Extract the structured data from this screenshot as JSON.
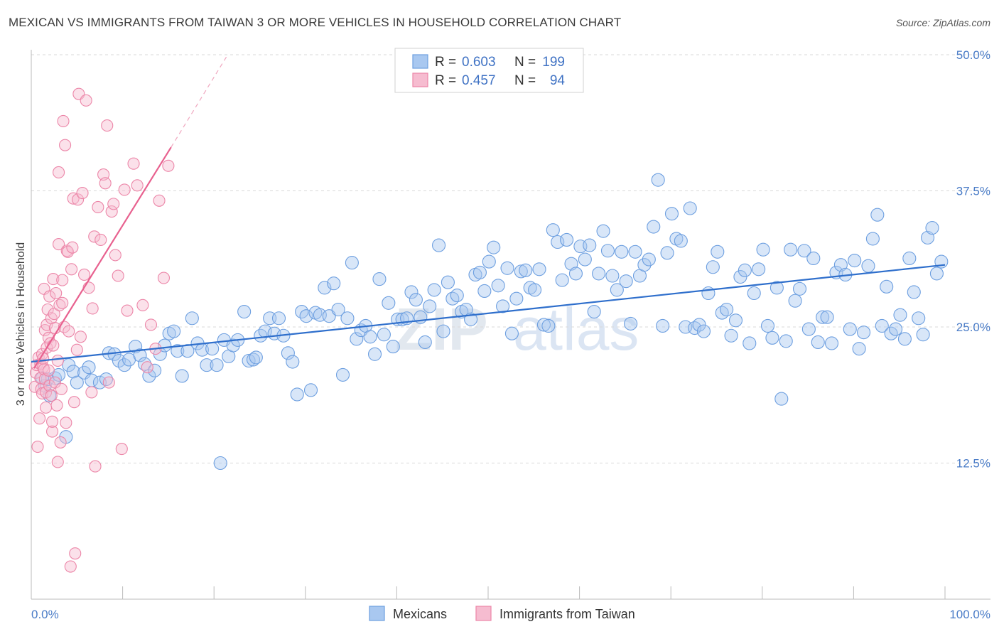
{
  "title": "MEXICAN VS IMMIGRANTS FROM TAIWAN 3 OR MORE VEHICLES IN HOUSEHOLD CORRELATION CHART",
  "source": "Source: ZipAtlas.com",
  "watermark": "ZIPatlas",
  "colors": {
    "mexicans_fill": "#a9c8f0",
    "mexicans_stroke": "#6d9fe0",
    "mexicans_line": "#2f6fcc",
    "taiwan_fill": "#f6bcd0",
    "taiwan_stroke": "#ec86a8",
    "taiwan_line": "#e8618f",
    "grid": "#d9d9d9",
    "tick_label": "#4a7cc7"
  },
  "legend": {
    "r_label": "R =",
    "n_label": "N =",
    "series": [
      {
        "r": "0.603",
        "n": "199"
      },
      {
        "r": "0.457",
        "n": "94"
      }
    ]
  },
  "chart_data": {
    "type": "scatter",
    "title": "MEXICAN VS IMMIGRANTS FROM TAIWAN 3 OR MORE VEHICLES IN HOUSEHOLD CORRELATION CHART",
    "xlabel": "",
    "ylabel": "3 or more Vehicles in Household",
    "xlim": [
      0,
      100
    ],
    "ylim": [
      0,
      52
    ],
    "x_tick_labels": [
      "0.0%",
      "100.0%"
    ],
    "y_ticks": [
      12.5,
      25.0,
      37.5,
      50.0
    ],
    "y_tick_labels": [
      "12.5%",
      "25.0%",
      "37.5%",
      "50.0%"
    ],
    "grid": true,
    "legend_position": "top-center",
    "series": [
      {
        "name": "Mexicans",
        "trend": {
          "x": [
            0,
            100
          ],
          "y": [
            21.8,
            30.7
          ]
        },
        "points": [
          [
            1.2,
            20.3
          ],
          [
            1.5,
            19.6
          ],
          [
            1.8,
            20.2
          ],
          [
            2.0,
            18.7
          ],
          [
            2.6,
            20.3
          ],
          [
            3.0,
            20.6
          ],
          [
            3.8,
            14.9
          ],
          [
            4.1,
            21.5
          ],
          [
            4.6,
            20.9
          ],
          [
            5.0,
            19.9
          ],
          [
            5.8,
            20.8
          ],
          [
            6.3,
            21.3
          ],
          [
            6.6,
            20.1
          ],
          [
            7.5,
            19.9
          ],
          [
            8.2,
            20.2
          ],
          [
            8.5,
            22.6
          ],
          [
            9.1,
            22.5
          ],
          [
            9.6,
            21.9
          ],
          [
            10.2,
            21.5
          ],
          [
            10.7,
            22.0
          ],
          [
            11.4,
            23.2
          ],
          [
            11.9,
            22.4
          ],
          [
            12.4,
            21.6
          ],
          [
            12.9,
            20.5
          ],
          [
            13.5,
            21.0
          ],
          [
            14.1,
            22.5
          ],
          [
            14.6,
            23.3
          ],
          [
            15.1,
            24.4
          ],
          [
            15.6,
            24.6
          ],
          [
            16.0,
            22.8
          ],
          [
            16.5,
            20.5
          ],
          [
            17.1,
            22.8
          ],
          [
            17.6,
            25.8
          ],
          [
            18.2,
            23.5
          ],
          [
            18.7,
            22.9
          ],
          [
            19.2,
            21.5
          ],
          [
            19.8,
            23.0
          ],
          [
            20.3,
            21.5
          ],
          [
            20.7,
            12.5
          ],
          [
            21.1,
            23.8
          ],
          [
            21.6,
            22.3
          ],
          [
            22.1,
            23.3
          ],
          [
            22.6,
            23.8
          ],
          [
            23.3,
            26.4
          ],
          [
            23.8,
            21.9
          ],
          [
            24.3,
            22.0
          ],
          [
            24.6,
            22.2
          ],
          [
            25.1,
            24.2
          ],
          [
            25.6,
            24.6
          ],
          [
            26.1,
            25.8
          ],
          [
            26.6,
            24.4
          ],
          [
            27.1,
            25.8
          ],
          [
            27.6,
            24.2
          ],
          [
            28.1,
            22.6
          ],
          [
            28.6,
            21.8
          ],
          [
            29.1,
            18.8
          ],
          [
            29.6,
            26.4
          ],
          [
            30.1,
            26.0
          ],
          [
            30.6,
            19.2
          ],
          [
            31.1,
            26.3
          ],
          [
            31.6,
            26.1
          ],
          [
            32.1,
            28.6
          ],
          [
            32.6,
            26.0
          ],
          [
            33.1,
            29.0
          ],
          [
            33.6,
            26.6
          ],
          [
            34.1,
            20.6
          ],
          [
            34.6,
            25.8
          ],
          [
            35.1,
            30.9
          ],
          [
            35.6,
            23.9
          ],
          [
            36.1,
            24.7
          ],
          [
            36.6,
            25.1
          ],
          [
            37.1,
            24.1
          ],
          [
            37.6,
            22.5
          ],
          [
            38.1,
            29.4
          ],
          [
            38.6,
            24.3
          ],
          [
            39.1,
            27.2
          ],
          [
            39.6,
            23.2
          ],
          [
            40.1,
            25.7
          ],
          [
            40.6,
            25.7
          ],
          [
            41.1,
            25.8
          ],
          [
            41.6,
            28.2
          ],
          [
            42.1,
            27.5
          ],
          [
            42.6,
            25.9
          ],
          [
            43.1,
            23.6
          ],
          [
            43.6,
            26.9
          ],
          [
            44.1,
            28.4
          ],
          [
            44.6,
            32.5
          ],
          [
            45.1,
            24.6
          ],
          [
            45.6,
            29.1
          ],
          [
            46.1,
            27.6
          ],
          [
            46.6,
            27.9
          ],
          [
            47.1,
            26.4
          ],
          [
            47.6,
            26.6
          ],
          [
            48.1,
            25.7
          ],
          [
            48.6,
            29.8
          ],
          [
            49.1,
            30.0
          ],
          [
            49.6,
            28.3
          ],
          [
            50.1,
            31.0
          ],
          [
            50.6,
            32.3
          ],
          [
            51.1,
            28.8
          ],
          [
            51.6,
            26.9
          ],
          [
            52.1,
            30.4
          ],
          [
            52.6,
            24.4
          ],
          [
            53.1,
            27.6
          ],
          [
            53.6,
            30.1
          ],
          [
            54.1,
            30.2
          ],
          [
            54.6,
            28.6
          ],
          [
            55.1,
            28.4
          ],
          [
            55.6,
            30.3
          ],
          [
            56.1,
            25.2
          ],
          [
            56.6,
            25.1
          ],
          [
            57.1,
            33.9
          ],
          [
            57.6,
            32.8
          ],
          [
            58.1,
            29.3
          ],
          [
            58.6,
            33.0
          ],
          [
            59.1,
            30.8
          ],
          [
            59.6,
            29.9
          ],
          [
            60.1,
            32.4
          ],
          [
            60.6,
            31.2
          ],
          [
            61.1,
            32.5
          ],
          [
            61.6,
            26.4
          ],
          [
            62.1,
            29.9
          ],
          [
            62.6,
            33.8
          ],
          [
            63.1,
            32.0
          ],
          [
            63.6,
            29.7
          ],
          [
            64.1,
            28.4
          ],
          [
            64.6,
            31.9
          ],
          [
            65.1,
            29.2
          ],
          [
            65.6,
            25.3
          ],
          [
            66.1,
            31.9
          ],
          [
            66.6,
            29.7
          ],
          [
            67.1,
            30.7
          ],
          [
            67.6,
            31.2
          ],
          [
            68.1,
            34.2
          ],
          [
            68.6,
            38.5
          ],
          [
            69.1,
            25.1
          ],
          [
            69.6,
            31.8
          ],
          [
            70.1,
            35.4
          ],
          [
            70.6,
            33.1
          ],
          [
            71.1,
            32.9
          ],
          [
            71.6,
            25.0
          ],
          [
            72.1,
            35.9
          ],
          [
            72.6,
            24.9
          ],
          [
            73.1,
            25.2
          ],
          [
            73.6,
            24.6
          ],
          [
            74.1,
            28.1
          ],
          [
            74.6,
            30.5
          ],
          [
            75.1,
            31.9
          ],
          [
            75.6,
            26.3
          ],
          [
            76.1,
            26.6
          ],
          [
            76.6,
            24.2
          ],
          [
            77.1,
            25.6
          ],
          [
            77.6,
            29.6
          ],
          [
            78.1,
            30.2
          ],
          [
            78.6,
            23.5
          ],
          [
            79.1,
            28.1
          ],
          [
            79.6,
            30.3
          ],
          [
            80.1,
            32.1
          ],
          [
            80.6,
            25.1
          ],
          [
            81.1,
            24.0
          ],
          [
            81.6,
            28.6
          ],
          [
            82.1,
            18.4
          ],
          [
            82.6,
            23.7
          ],
          [
            83.1,
            32.1
          ],
          [
            83.6,
            27.4
          ],
          [
            84.1,
            28.5
          ],
          [
            84.6,
            32.0
          ],
          [
            85.1,
            24.8
          ],
          [
            85.6,
            31.3
          ],
          [
            86.1,
            23.6
          ],
          [
            86.6,
            25.9
          ],
          [
            87.1,
            25.9
          ],
          [
            87.6,
            23.5
          ],
          [
            88.1,
            30.0
          ],
          [
            88.6,
            30.7
          ],
          [
            89.1,
            29.8
          ],
          [
            89.6,
            24.8
          ],
          [
            90.1,
            31.1
          ],
          [
            90.6,
            23.0
          ],
          [
            91.1,
            24.5
          ],
          [
            91.6,
            30.6
          ],
          [
            92.1,
            33.1
          ],
          [
            92.6,
            35.3
          ],
          [
            93.1,
            25.1
          ],
          [
            93.6,
            28.7
          ],
          [
            94.1,
            24.4
          ],
          [
            94.6,
            24.8
          ],
          [
            95.1,
            26.1
          ],
          [
            95.6,
            23.9
          ],
          [
            96.1,
            31.3
          ],
          [
            96.6,
            28.2
          ],
          [
            97.1,
            25.8
          ],
          [
            97.6,
            24.3
          ],
          [
            98.1,
            33.2
          ],
          [
            98.6,
            34.1
          ],
          [
            99.1,
            29.9
          ],
          [
            99.6,
            31.0
          ]
        ]
      },
      {
        "name": "Immigrants from Taiwan",
        "trend": {
          "x": [
            0.3,
            15.3
          ],
          "y": [
            21.2,
            41.5
          ]
        },
        "trend_dashed": {
          "x": [
            15.3,
            21.5
          ],
          "y": [
            41.5,
            50.0
          ]
        },
        "points": [
          [
            0.4,
            19.5
          ],
          [
            0.5,
            20.8
          ],
          [
            0.6,
            21.5
          ],
          [
            0.7,
            14.0
          ],
          [
            0.8,
            22.2
          ],
          [
            0.9,
            16.6
          ],
          [
            1.0,
            21.6
          ],
          [
            1.0,
            20.3
          ],
          [
            1.1,
            19.3
          ],
          [
            1.2,
            22.5
          ],
          [
            1.2,
            18.9
          ],
          [
            1.3,
            21.3
          ],
          [
            1.3,
            22.1
          ],
          [
            1.4,
            21.1
          ],
          [
            1.4,
            28.5
          ],
          [
            1.5,
            20.2
          ],
          [
            1.5,
            24.7
          ],
          [
            1.6,
            19.0
          ],
          [
            1.6,
            17.6
          ],
          [
            1.7,
            25.2
          ],
          [
            1.7,
            23.1
          ],
          [
            1.8,
            26.6
          ],
          [
            1.9,
            21.0
          ],
          [
            1.9,
            24.0
          ],
          [
            2.0,
            27.8
          ],
          [
            2.0,
            19.6
          ],
          [
            2.1,
            23.5
          ],
          [
            2.2,
            25.8
          ],
          [
            2.2,
            18.7
          ],
          [
            2.3,
            15.4
          ],
          [
            2.3,
            16.3
          ],
          [
            2.4,
            23.3
          ],
          [
            2.4,
            29.4
          ],
          [
            2.5,
            26.2
          ],
          [
            2.6,
            24.9
          ],
          [
            2.6,
            19.9
          ],
          [
            2.7,
            28.1
          ],
          [
            2.8,
            17.8
          ],
          [
            2.9,
            12.6
          ],
          [
            2.9,
            21.9
          ],
          [
            3.0,
            32.6
          ],
          [
            3.0,
            39.2
          ],
          [
            3.1,
            27.0
          ],
          [
            3.2,
            14.4
          ],
          [
            3.3,
            19.3
          ],
          [
            3.4,
            27.2
          ],
          [
            3.4,
            29.3
          ],
          [
            3.5,
            43.9
          ],
          [
            3.6,
            25.0
          ],
          [
            3.7,
            41.7
          ],
          [
            3.8,
            16.2
          ],
          [
            3.9,
            32.0
          ],
          [
            4.0,
            31.9
          ],
          [
            4.1,
            24.6
          ],
          [
            4.3,
            3.0
          ],
          [
            4.4,
            30.3
          ],
          [
            4.5,
            32.3
          ],
          [
            4.6,
            36.8
          ],
          [
            4.7,
            18.1
          ],
          [
            4.8,
            4.2
          ],
          [
            5.0,
            22.9
          ],
          [
            5.1,
            36.7
          ],
          [
            5.2,
            46.4
          ],
          [
            5.4,
            24.1
          ],
          [
            5.6,
            37.3
          ],
          [
            5.8,
            29.8
          ],
          [
            6.0,
            45.8
          ],
          [
            6.3,
            28.6
          ],
          [
            6.6,
            19.0
          ],
          [
            6.7,
            26.7
          ],
          [
            6.9,
            33.3
          ],
          [
            7.0,
            12.2
          ],
          [
            7.3,
            36.0
          ],
          [
            7.6,
            33.0
          ],
          [
            7.9,
            39.0
          ],
          [
            8.1,
            38.2
          ],
          [
            8.3,
            43.5
          ],
          [
            8.5,
            19.9
          ],
          [
            8.8,
            35.6
          ],
          [
            9.0,
            36.3
          ],
          [
            9.2,
            31.6
          ],
          [
            9.5,
            29.7
          ],
          [
            9.9,
            13.8
          ],
          [
            10.2,
            37.6
          ],
          [
            10.5,
            26.5
          ],
          [
            11.2,
            40.0
          ],
          [
            11.6,
            38.0
          ],
          [
            12.2,
            27.0
          ],
          [
            12.7,
            21.3
          ],
          [
            13.1,
            25.2
          ],
          [
            13.6,
            23.0
          ],
          [
            14.0,
            36.6
          ],
          [
            14.5,
            29.5
          ],
          [
            15.0,
            39.8
          ]
        ]
      }
    ]
  },
  "bottom_legend": {
    "items": [
      {
        "label": "Mexicans"
      },
      {
        "label": "Immigrants from Taiwan"
      }
    ]
  }
}
